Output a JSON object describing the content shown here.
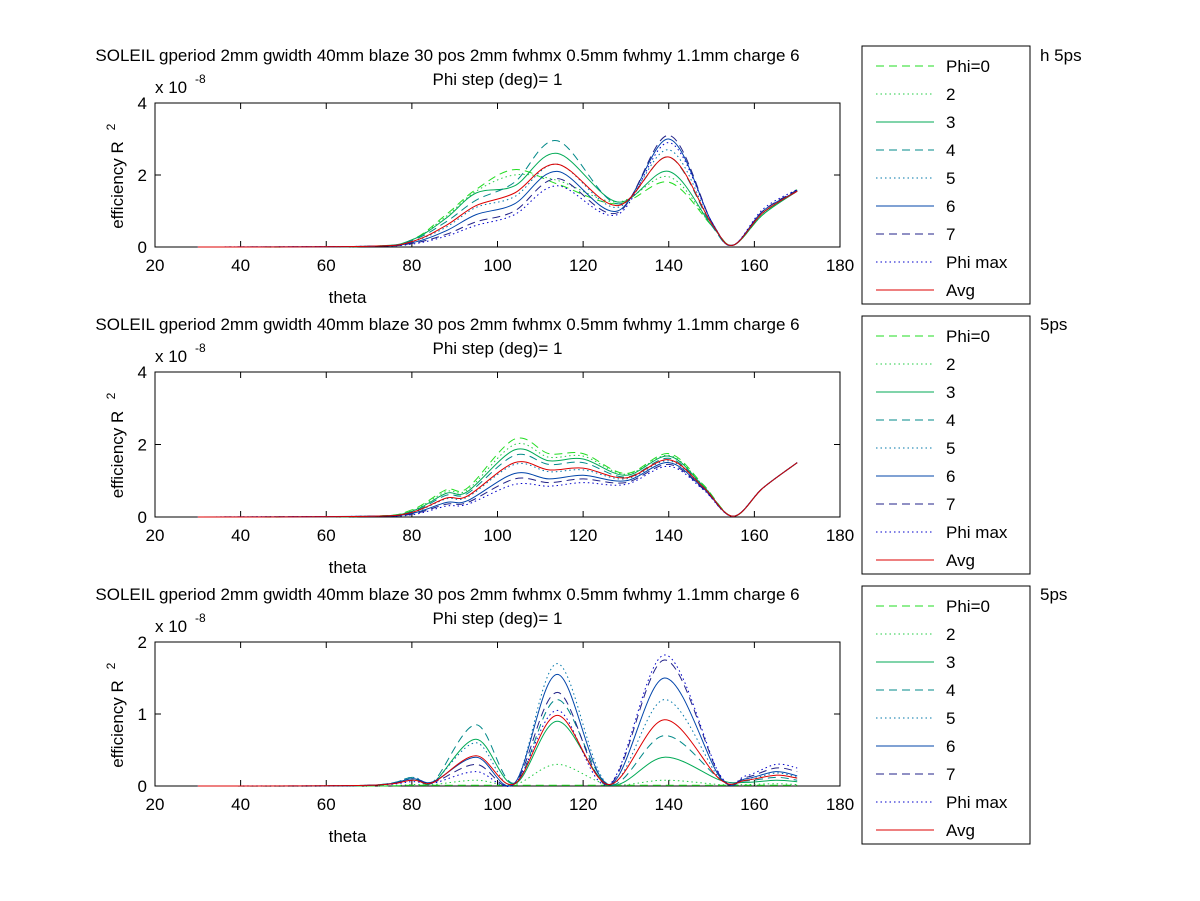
{
  "chart_data": [
    {
      "type": "line",
      "title": "SOLEIL gperiod 2mm gwidth 40mm blaze 30 pos 2mm fwhmx 0.5mm fwhmy 1.1mm charge 6",
      "title_tail": "h 5ps",
      "subtitle": "Phi step (deg)= 1",
      "xlabel": "theta",
      "ylabel": "efficiency R",
      "ylabel_exp": "2",
      "y_scale_label": "x 10",
      "y_scale_exp": "-8",
      "xlim": [
        20,
        180
      ],
      "ylim": [
        0,
        4
      ],
      "xticks": [
        "20",
        "40",
        "60",
        "80",
        "100",
        "120",
        "140",
        "160",
        "180"
      ],
      "yticks": [
        "0",
        "2",
        "4"
      ],
      "grid": false,
      "legend_position": "right",
      "legend": [
        "Phi=0",
        "2",
        "3",
        "4",
        "5",
        "6",
        "7",
        "Phi max",
        "Avg"
      ],
      "series": [
        {
          "name": "Phi=0",
          "color": "#22dd22",
          "dash": "dashed",
          "x": [
            30,
            70,
            80,
            88,
            95,
            104,
            114,
            128,
            140,
            150,
            155,
            162,
            170
          ],
          "y": [
            0,
            0.02,
            0.2,
            0.9,
            1.6,
            2.15,
            1.75,
            1.2,
            1.8,
            0.6,
            0.05,
            0.9,
            1.6
          ]
        },
        {
          "name": "2",
          "color": "#22cc44",
          "dash": "dotted",
          "x": [
            30,
            70,
            80,
            88,
            95,
            104,
            114,
            128,
            140,
            150,
            155,
            162,
            170
          ],
          "y": [
            0,
            0.02,
            0.2,
            0.85,
            1.55,
            2.0,
            1.85,
            1.25,
            1.95,
            0.6,
            0.05,
            0.9,
            1.58
          ]
        },
        {
          "name": "3",
          "color": "#00aa55",
          "dash": "solid",
          "x": [
            30,
            70,
            80,
            88,
            95,
            104,
            114,
            128,
            140,
            150,
            155,
            162,
            170
          ],
          "y": [
            0,
            0.02,
            0.2,
            0.8,
            1.5,
            1.7,
            2.6,
            1.25,
            2.1,
            0.6,
            0.05,
            0.9,
            1.55
          ]
        },
        {
          "name": "4",
          "color": "#008888",
          "dash": "dashed",
          "x": [
            30,
            70,
            80,
            88,
            95,
            104,
            114,
            128,
            140,
            150,
            155,
            162,
            170
          ],
          "y": [
            0,
            0.02,
            0.18,
            0.7,
            1.3,
            1.8,
            2.95,
            1.2,
            2.5,
            0.6,
            0.05,
            0.95,
            1.55
          ]
        },
        {
          "name": "5",
          "color": "#0077aa",
          "dash": "dotted",
          "x": [
            30,
            70,
            80,
            88,
            95,
            104,
            114,
            128,
            140,
            150,
            155,
            162,
            170
          ],
          "y": [
            0,
            0.02,
            0.15,
            0.55,
            1.1,
            1.4,
            2.3,
            1.1,
            2.7,
            0.65,
            0.05,
            0.95,
            1.55
          ]
        },
        {
          "name": "6",
          "color": "#0044aa",
          "dash": "solid",
          "x": [
            30,
            70,
            80,
            88,
            95,
            104,
            114,
            128,
            140,
            150,
            155,
            162,
            170
          ],
          "y": [
            0,
            0.02,
            0.12,
            0.45,
            0.9,
            1.2,
            2.1,
            1.0,
            3.0,
            0.7,
            0.05,
            1.0,
            1.55
          ]
        },
        {
          "name": "7",
          "color": "#222288",
          "dash": "dashed",
          "x": [
            30,
            70,
            80,
            88,
            95,
            104,
            114,
            128,
            140,
            150,
            155,
            162,
            170
          ],
          "y": [
            0,
            0.02,
            0.1,
            0.35,
            0.7,
            1.0,
            1.9,
            0.95,
            3.1,
            0.7,
            0.05,
            1.0,
            1.58
          ]
        },
        {
          "name": "Phi max",
          "color": "#0000cc",
          "dash": "dotted",
          "x": [
            30,
            70,
            80,
            88,
            95,
            104,
            114,
            128,
            140,
            150,
            155,
            162,
            170
          ],
          "y": [
            0,
            0.02,
            0.08,
            0.3,
            0.6,
            0.9,
            1.7,
            0.9,
            2.9,
            0.7,
            0.05,
            1.05,
            1.6
          ]
        },
        {
          "name": "Avg",
          "color": "#dd0000",
          "dash": "solid",
          "x": [
            30,
            70,
            80,
            88,
            95,
            104,
            114,
            128,
            140,
            150,
            155,
            162,
            170
          ],
          "y": [
            0,
            0.02,
            0.15,
            0.6,
            1.15,
            1.5,
            2.3,
            1.15,
            2.5,
            0.65,
            0.05,
            0.95,
            1.55
          ]
        }
      ]
    },
    {
      "type": "line",
      "title": "SOLEIL gperiod 2mm gwidth 40mm blaze 30 pos 2mm fwhmx 0.5mm fwhmy 1.1mm charge 6",
      "title_tail": "5ps",
      "subtitle": "Phi step (deg)= 1",
      "xlabel": "theta",
      "ylabel": "efficiency R",
      "ylabel_exp": "2",
      "y_scale_label": "x 10",
      "y_scale_exp": "-8",
      "xlim": [
        20,
        180
      ],
      "ylim": [
        0,
        4
      ],
      "xticks": [
        "20",
        "40",
        "60",
        "80",
        "100",
        "120",
        "140",
        "160",
        "180"
      ],
      "yticks": [
        "0",
        "2",
        "4"
      ],
      "grid": false,
      "legend_position": "right",
      "legend": [
        "Phi=0",
        "2",
        "3",
        "4",
        "5",
        "6",
        "7",
        "Phi max",
        "Avg"
      ],
      "series": [
        {
          "name": "Phi=0",
          "color": "#22dd22",
          "dash": "dashed",
          "x": [
            30,
            70,
            80,
            88,
            93,
            104,
            112,
            120,
            130,
            140,
            148,
            155,
            162,
            170
          ],
          "y": [
            0,
            0.02,
            0.2,
            0.75,
            0.8,
            2.15,
            1.75,
            1.75,
            1.2,
            1.75,
            0.9,
            0.02,
            0.8,
            1.5
          ]
        },
        {
          "name": "2",
          "color": "#22cc44",
          "dash": "dotted",
          "x": [
            30,
            70,
            80,
            88,
            93,
            104,
            112,
            120,
            130,
            140,
            148,
            155,
            162,
            170
          ],
          "y": [
            0,
            0.02,
            0.18,
            0.7,
            0.75,
            2.0,
            1.65,
            1.68,
            1.18,
            1.7,
            0.88,
            0.02,
            0.8,
            1.5
          ]
        },
        {
          "name": "3",
          "color": "#00aa55",
          "dash": "solid",
          "x": [
            30,
            70,
            80,
            88,
            93,
            104,
            112,
            120,
            130,
            140,
            148,
            155,
            162,
            170
          ],
          "y": [
            0,
            0.02,
            0.16,
            0.65,
            0.7,
            1.85,
            1.55,
            1.6,
            1.15,
            1.68,
            0.86,
            0.02,
            0.8,
            1.5
          ]
        },
        {
          "name": "4",
          "color": "#008888",
          "dash": "dashed",
          "x": [
            30,
            70,
            80,
            88,
            93,
            104,
            112,
            120,
            130,
            140,
            148,
            155,
            162,
            170
          ],
          "y": [
            0,
            0.02,
            0.14,
            0.6,
            0.65,
            1.7,
            1.45,
            1.5,
            1.1,
            1.62,
            0.84,
            0.02,
            0.8,
            1.5
          ]
        },
        {
          "name": "5",
          "color": "#0077aa",
          "dash": "dotted",
          "x": [
            30,
            70,
            80,
            88,
            93,
            104,
            112,
            120,
            130,
            140,
            148,
            155,
            162,
            170
          ],
          "y": [
            0,
            0.02,
            0.12,
            0.5,
            0.55,
            1.45,
            1.25,
            1.3,
            1.05,
            1.55,
            0.82,
            0.02,
            0.8,
            1.5
          ]
        },
        {
          "name": "6",
          "color": "#0044aa",
          "dash": "solid",
          "x": [
            30,
            70,
            80,
            88,
            93,
            104,
            112,
            120,
            130,
            140,
            148,
            155,
            162,
            170
          ],
          "y": [
            0,
            0.02,
            0.1,
            0.4,
            0.45,
            1.2,
            1.05,
            1.15,
            1.0,
            1.5,
            0.8,
            0.02,
            0.8,
            1.5
          ]
        },
        {
          "name": "7",
          "color": "#222288",
          "dash": "dashed",
          "x": [
            30,
            70,
            80,
            88,
            93,
            104,
            112,
            120,
            130,
            140,
            148,
            155,
            162,
            170
          ],
          "y": [
            0,
            0.02,
            0.08,
            0.35,
            0.4,
            1.05,
            0.95,
            1.05,
            0.95,
            1.45,
            0.78,
            0.02,
            0.8,
            1.5
          ]
        },
        {
          "name": "Phi max",
          "color": "#0000cc",
          "dash": "dotted",
          "x": [
            30,
            70,
            80,
            88,
            93,
            104,
            112,
            120,
            130,
            140,
            148,
            155,
            162,
            170
          ],
          "y": [
            0,
            0.02,
            0.06,
            0.3,
            0.35,
            0.9,
            0.85,
            0.95,
            0.9,
            1.4,
            0.76,
            0.02,
            0.8,
            1.5
          ]
        },
        {
          "name": "Avg",
          "color": "#dd0000",
          "dash": "solid",
          "x": [
            30,
            70,
            80,
            88,
            93,
            104,
            112,
            120,
            130,
            140,
            148,
            155,
            162,
            170
          ],
          "y": [
            0,
            0.02,
            0.13,
            0.52,
            0.58,
            1.5,
            1.3,
            1.35,
            1.08,
            1.58,
            0.83,
            0.02,
            0.8,
            1.5
          ]
        }
      ]
    },
    {
      "type": "line",
      "title": "SOLEIL gperiod 2mm gwidth 40mm blaze 30 pos 2mm fwhmx 0.5mm fwhmy 1.1mm charge 6",
      "title_tail": "5ps",
      "subtitle": "Phi step (deg)= 1",
      "xlabel": "theta",
      "ylabel": "efficiency R",
      "ylabel_exp": "2",
      "y_scale_label": "x 10",
      "y_scale_exp": "-8",
      "xlim": [
        20,
        180
      ],
      "ylim": [
        0,
        2
      ],
      "xticks": [
        "20",
        "40",
        "60",
        "80",
        "100",
        "120",
        "140",
        "160",
        "180"
      ],
      "yticks": [
        "0",
        "1",
        "2"
      ],
      "grid": false,
      "legend_position": "right",
      "legend": [
        "Phi=0",
        "2",
        "3",
        "4",
        "5",
        "6",
        "7",
        "Phi max",
        "Avg"
      ],
      "series": [
        {
          "name": "Phi=0",
          "color": "#22dd22",
          "dash": "dashed",
          "x": [
            30,
            70,
            80,
            85,
            95,
            104,
            114,
            126,
            139,
            152,
            158,
            165,
            170
          ],
          "y": [
            0,
            0,
            0.01,
            0.01,
            0.01,
            0.01,
            0.01,
            0.01,
            0.01,
            0.01,
            0.01,
            0.01,
            0.01
          ]
        },
        {
          "name": "2",
          "color": "#22cc44",
          "dash": "dotted",
          "x": [
            30,
            70,
            80,
            85,
            95,
            104,
            114,
            126,
            139,
            152,
            158,
            165,
            170
          ],
          "y": [
            0,
            0,
            0.02,
            0.02,
            0.08,
            0.02,
            0.3,
            0.02,
            0.08,
            0.02,
            0.02,
            0.03,
            0.02
          ]
        },
        {
          "name": "3",
          "color": "#00aa55",
          "dash": "solid",
          "x": [
            30,
            70,
            80,
            85,
            95,
            104,
            114,
            126,
            139,
            152,
            158,
            165,
            170
          ],
          "y": [
            0,
            0.01,
            0.1,
            0.05,
            0.65,
            0.03,
            0.9,
            0.02,
            0.4,
            0.08,
            0.05,
            0.08,
            0.06
          ]
        },
        {
          "name": "4",
          "color": "#008888",
          "dash": "dashed",
          "x": [
            30,
            70,
            80,
            85,
            95,
            104,
            114,
            126,
            139,
            152,
            158,
            165,
            170
          ],
          "y": [
            0,
            0.01,
            0.12,
            0.06,
            0.85,
            0.04,
            1.2,
            0.02,
            0.7,
            0.1,
            0.07,
            0.12,
            0.08
          ]
        },
        {
          "name": "5",
          "color": "#0077aa",
          "dash": "dotted",
          "x": [
            30,
            70,
            80,
            85,
            95,
            104,
            114,
            126,
            139,
            152,
            158,
            165,
            170
          ],
          "y": [
            0,
            0.01,
            0.12,
            0.06,
            0.6,
            0.04,
            1.7,
            0.02,
            1.2,
            0.1,
            0.08,
            0.18,
            0.12
          ]
        },
        {
          "name": "6",
          "color": "#0044aa",
          "dash": "solid",
          "x": [
            30,
            70,
            80,
            85,
            95,
            104,
            114,
            126,
            139,
            152,
            158,
            165,
            170
          ],
          "y": [
            0,
            0.01,
            0.1,
            0.06,
            0.4,
            0.04,
            1.55,
            0.02,
            1.5,
            0.12,
            0.1,
            0.2,
            0.14
          ]
        },
        {
          "name": "7",
          "color": "#222288",
          "dash": "dashed",
          "x": [
            30,
            70,
            80,
            85,
            95,
            104,
            114,
            126,
            139,
            152,
            158,
            165,
            170
          ],
          "y": [
            0,
            0.01,
            0.08,
            0.05,
            0.3,
            0.03,
            1.3,
            0.02,
            1.75,
            0.14,
            0.12,
            0.25,
            0.2
          ]
        },
        {
          "name": "Phi max",
          "color": "#0000cc",
          "dash": "dotted",
          "x": [
            30,
            70,
            80,
            85,
            95,
            104,
            114,
            126,
            139,
            152,
            158,
            165,
            170
          ],
          "y": [
            0,
            0.01,
            0.06,
            0.04,
            0.2,
            0.03,
            1.05,
            0.02,
            1.82,
            0.15,
            0.14,
            0.3,
            0.25
          ]
        },
        {
          "name": "Avg",
          "color": "#dd0000",
          "dash": "solid",
          "x": [
            30,
            70,
            80,
            85,
            95,
            104,
            114,
            126,
            139,
            152,
            158,
            165,
            170
          ],
          "y": [
            0,
            0.01,
            0.08,
            0.05,
            0.42,
            0.03,
            0.98,
            0.02,
            0.92,
            0.09,
            0.08,
            0.15,
            0.11
          ]
        }
      ]
    }
  ]
}
